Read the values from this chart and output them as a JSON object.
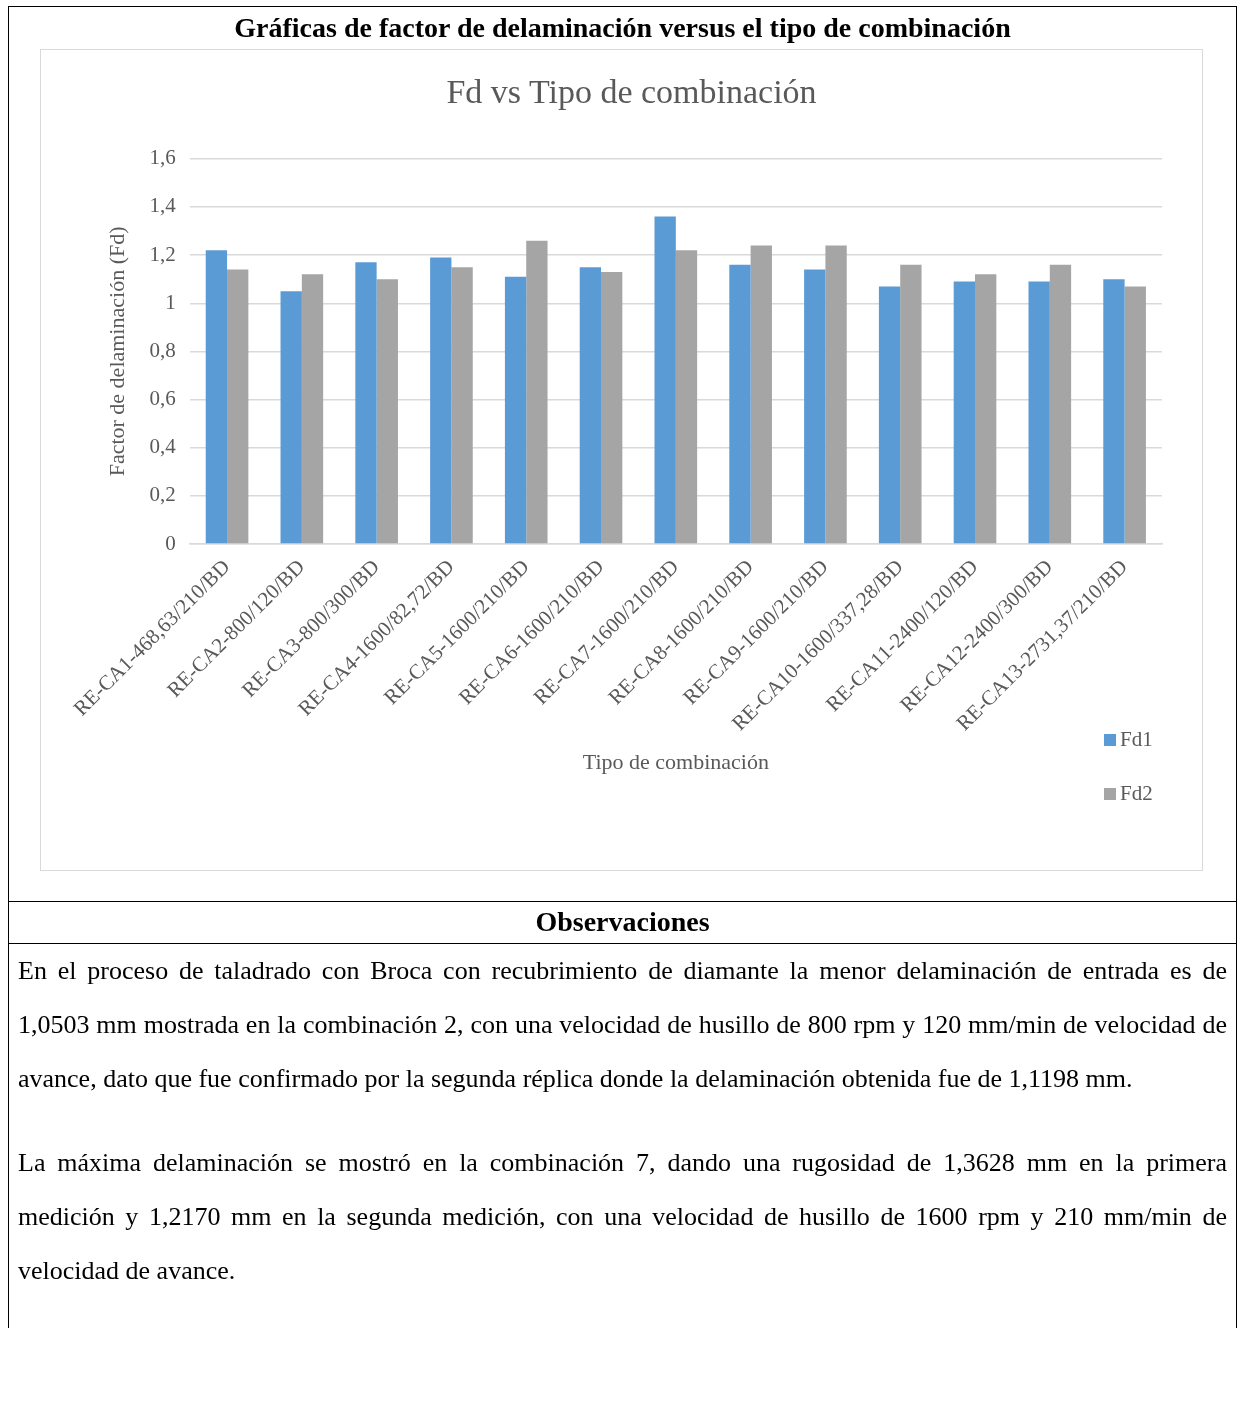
{
  "chart_data": {
    "type": "bar",
    "title": "Fd vs Tipo de combinación",
    "xlabel": "Tipo de combinación",
    "ylabel": "Factor de delaminación (Fd)",
    "categories": [
      "RE-CA1-468,63/210/BD",
      "RE-CA2-800/120/BD",
      "RE-CA3-800/300/BD",
      "RE-CA4-1600/82,72/BD",
      "RE-CA5-1600/210/BD",
      "RE-CA6-1600/210/BD",
      "RE-CA7-1600/210/BD",
      "RE-CA8-1600/210/BD",
      "RE-CA9-1600/210/BD",
      "RE-CA10-1600/337,28/BD",
      "RE-CA11-2400/120/BD",
      "RE-CA12-2400/300/BD",
      "RE-CA13-2731,37/210/BD"
    ],
    "series": [
      {
        "name": "Fd1",
        "color": "#5b9bd5",
        "values": [
          1.22,
          1.05,
          1.17,
          1.19,
          1.11,
          1.15,
          1.36,
          1.16,
          1.14,
          1.07,
          1.09,
          1.09,
          1.1
        ]
      },
      {
        "name": "Fd2",
        "color": "#a5a5a5",
        "values": [
          1.14,
          1.12,
          1.1,
          1.15,
          1.26,
          1.13,
          1.22,
          1.24,
          1.24,
          1.16,
          1.12,
          1.16,
          1.07
        ]
      }
    ],
    "ylim": [
      0,
      1.6
    ],
    "yticks": [
      {
        "value": 0,
        "label": "0"
      },
      {
        "value": 0.2,
        "label": "0,2"
      },
      {
        "value": 0.4,
        "label": "0,4"
      },
      {
        "value": 0.6,
        "label": "0,6"
      },
      {
        "value": 0.8,
        "label": "0,8"
      },
      {
        "value": 1,
        "label": "1"
      },
      {
        "value": 1.2,
        "label": "1,2"
      },
      {
        "value": 1.4,
        "label": "1,4"
      },
      {
        "value": 1.6,
        "label": "1,6"
      }
    ],
    "grid": "y",
    "legend": "bottom right",
    "annotations": [
      "Gráficas de factor de delaminación versus el tipo de combinación",
      "Observaciones",
      "En el proceso de taladrado con Broca con recubrimiento de diamante la menor delaminación de entrada es de 1,0503 mm mostrada en la combinación 2, con una velocidad de husillo de 800 rpm y 120 mm/min de velocidad de avance, dato que fue confirmado por la segunda réplica donde la delaminación obtenida fue de 1,1198 mm.",
      "La máxima delaminación se mostró en la combinación 7, dando una rugosidad de 1,3628 mm en la primera medición y 1,2170 mm en la segunda medición, con una velocidad de husillo de 1600 rpm y 210 mm/min de velocidad de avance."
    ]
  }
}
